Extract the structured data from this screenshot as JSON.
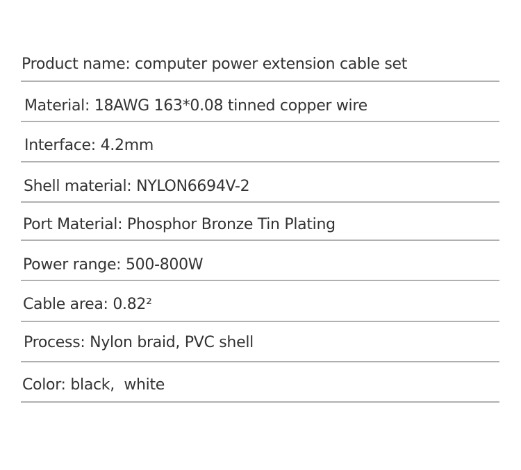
{
  "specs": [
    "Product name: computer power extension cable set",
    "Material: 18AWG 163*0.08 tinned copper wire",
    "Interface: 4.2mm",
    "Shell material: NYLON6694V-2",
    "Port Material: Phosphor Bronze Tin Plating",
    "Power range: 500-800W",
    "Cable area: 0.82²",
    "Process: Nylon braid, PVC shell",
    "Color: black,  white"
  ],
  "colors": {
    "text": "#333333",
    "divider": "#b0b0b0"
  }
}
